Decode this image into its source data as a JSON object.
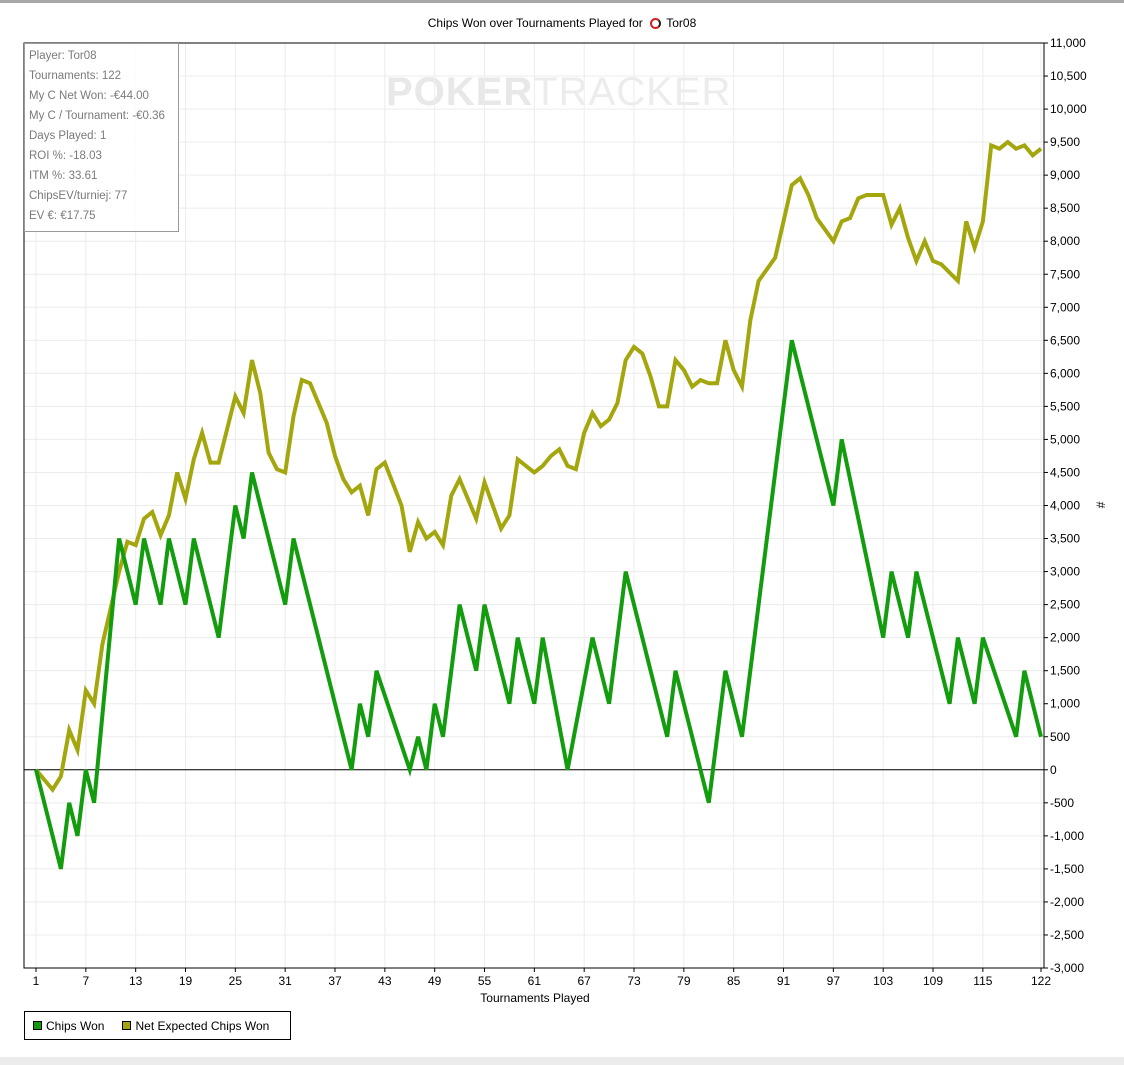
{
  "chart_data": {
    "type": "line",
    "title": "Chips Won over Tournaments Played for",
    "player_name": "Tor08",
    "xlabel": "Tournaments Played",
    "ylabel": "#",
    "xlim": [
      1,
      122
    ],
    "ylim": [
      -3000,
      11000
    ],
    "x_ticks": [
      1,
      7,
      13,
      19,
      25,
      31,
      37,
      43,
      49,
      55,
      61,
      67,
      73,
      79,
      85,
      91,
      97,
      103,
      109,
      115,
      122
    ],
    "y_ticks": [
      -3000,
      -2500,
      -2000,
      -1500,
      -1000,
      -500,
      0,
      500,
      1000,
      1500,
      2000,
      2500,
      3000,
      3500,
      4000,
      4500,
      5000,
      5500,
      6000,
      6500,
      7000,
      7500,
      8000,
      8500,
      9000,
      9500,
      10000,
      10500,
      11000
    ],
    "y_tick_labels": [
      "-3,000",
      "-2,500",
      "-2,000",
      "-1,500",
      "-1,000",
      "-500",
      "0",
      "500",
      "1,000",
      "1,500",
      "2,000",
      "2,500",
      "3,000",
      "3,500",
      "4,000",
      "4,500",
      "5,000",
      "5,500",
      "6,000",
      "6,500",
      "7,000",
      "7,500",
      "8,000",
      "8,500",
      "9,000",
      "9,500",
      "10,000",
      "10,500",
      "11,000"
    ],
    "grid": true,
    "legend_position": "bottom-left",
    "series": [
      {
        "name": "Chips Won",
        "color": "#129c0e",
        "x": [
          1,
          4,
          5,
          6,
          7,
          8,
          11,
          13,
          14,
          16,
          17,
          19,
          20,
          23,
          25,
          26,
          27,
          31,
          32,
          39,
          40,
          41,
          42,
          46,
          47,
          48,
          49,
          50,
          52,
          54,
          55,
          58,
          59,
          61,
          62,
          65,
          68,
          70,
          72,
          77,
          78,
          82,
          84,
          86,
          92,
          97,
          98,
          103,
          104,
          106,
          107,
          111,
          112,
          114,
          115,
          119,
          120,
          122
        ],
        "y": [
          0,
          -1500,
          -500,
          -1000,
          0,
          -500,
          3500,
          2500,
          3500,
          2500,
          3500,
          2500,
          3500,
          2000,
          4000,
          3500,
          4500,
          2500,
          3500,
          0,
          1000,
          500,
          1500,
          0,
          500,
          0,
          1000,
          500,
          2500,
          1500,
          2500,
          1000,
          2000,
          1000,
          2000,
          0,
          2000,
          1000,
          3000,
          500,
          1500,
          -500,
          1500,
          500,
          6500,
          4000,
          5000,
          2000,
          3000,
          2000,
          3000,
          1000,
          2000,
          1000,
          2000,
          500,
          1500,
          500
        ]
      },
      {
        "name": "Net Expected Chips Won",
        "color": "#a3a70d",
        "x": [
          1,
          3,
          4,
          5,
          6,
          7,
          8,
          9,
          11,
          12,
          13,
          14,
          15,
          16,
          17,
          18,
          19,
          20,
          21,
          22,
          23,
          25,
          26,
          27,
          28,
          29,
          30,
          31,
          32,
          33,
          34,
          36,
          37,
          38,
          39,
          40,
          41,
          42,
          43,
          45,
          46,
          47,
          48,
          49,
          50,
          51,
          52,
          54,
          55,
          57,
          58,
          59,
          60,
          61,
          62,
          63,
          64,
          65,
          66,
          67,
          68,
          69,
          70,
          71,
          72,
          73,
          74,
          75,
          76,
          77,
          78,
          79,
          80,
          81,
          82,
          83,
          84,
          85,
          86,
          87,
          88,
          90,
          91,
          92,
          93,
          94,
          95,
          97,
          98,
          99,
          100,
          101,
          103,
          104,
          105,
          106,
          107,
          108,
          109,
          110,
          112,
          113,
          114,
          115,
          116,
          117,
          118,
          119,
          120,
          121,
          122
        ],
        "y": [
          0,
          -300,
          -100,
          600,
          300,
          1200,
          1000,
          1900,
          3000,
          3450,
          3400,
          3800,
          3900,
          3550,
          3850,
          4500,
          4100,
          4700,
          5100,
          4650,
          4650,
          5650,
          5400,
          6200,
          5700,
          4800,
          4550,
          4500,
          5350,
          5900,
          5850,
          5250,
          4750,
          4400,
          4200,
          4300,
          3850,
          4550,
          4650,
          4000,
          3300,
          3750,
          3500,
          3600,
          3400,
          4150,
          4400,
          3800,
          4350,
          3650,
          3850,
          4700,
          4600,
          4500,
          4600,
          4750,
          4850,
          4600,
          4550,
          5100,
          5400,
          5200,
          5300,
          5550,
          6200,
          6400,
          6300,
          5950,
          5500,
          5500,
          6200,
          6050,
          5800,
          5900,
          5850,
          5850,
          6500,
          6050,
          5800,
          6800,
          7400,
          7750,
          8300,
          8850,
          8950,
          8700,
          8350,
          8000,
          8300,
          8350,
          8650,
          8700,
          8700,
          8250,
          8500,
          8050,
          7700,
          8000,
          7700,
          7650,
          7400,
          8300,
          7900,
          8300,
          9450,
          9400,
          9500,
          9400,
          9450,
          9300,
          9400
        ]
      }
    ]
  },
  "stats": {
    "rows": [
      "Player: Tor08",
      "Tournaments: 122",
      "My C Net Won: -€44.00",
      "My C / Tournament: -€0.36",
      "Days Played: 1",
      "ROI %: -18.03",
      "ITM %: 33.61",
      "ChipsEV/turniej: 77",
      "EV €: €17.75"
    ]
  },
  "watermark": {
    "part1": "POKER",
    "part2": "TRACKER"
  },
  "legend": {
    "items": [
      {
        "label": "Chips Won",
        "color": "#129c0e"
      },
      {
        "label": "Net Expected Chips Won",
        "color": "#a3a70d"
      }
    ]
  }
}
